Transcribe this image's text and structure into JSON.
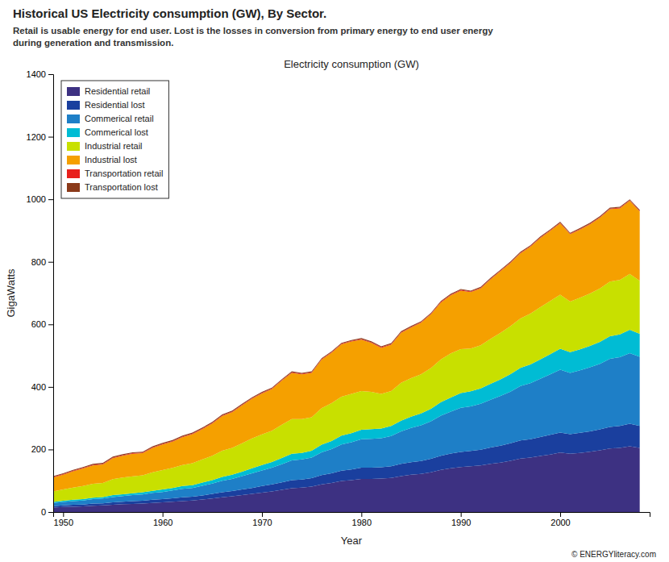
{
  "chart_data": {
    "type": "area",
    "stacked": true,
    "title": "Historical US Electricity consumption (GW), By Sector.",
    "subtitle": "Retail is usable energy for end user. Lost is the losses in conversion from primary energy to end user energy\nduring generation and transmission.",
    "annotations": [
      "Electricity consumption (GW)",
      "© ENERGYliteracy.com"
    ],
    "x_label": "Year",
    "y_label": "GigaWatts",
    "xlim": [
      1949,
      2009
    ],
    "ylim": [
      0,
      1400
    ],
    "xticks": [
      1950,
      1960,
      1970,
      1980,
      1990,
      2000
    ],
    "yticks": [
      0,
      200,
      400,
      600,
      800,
      1000,
      1200,
      1400
    ],
    "grid": false,
    "legend": "upper left",
    "x": [
      1949,
      1950,
      1951,
      1952,
      1953,
      1954,
      1955,
      1956,
      1957,
      1958,
      1959,
      1960,
      1961,
      1962,
      1963,
      1964,
      1965,
      1966,
      1967,
      1968,
      1969,
      1970,
      1971,
      1972,
      1973,
      1974,
      1975,
      1976,
      1977,
      1978,
      1979,
      1980,
      1981,
      1982,
      1983,
      1984,
      1985,
      1986,
      1987,
      1988,
      1989,
      1990,
      1991,
      1992,
      1993,
      1994,
      1995,
      1996,
      1997,
      1998,
      1999,
      2000,
      2001,
      2002,
      2003,
      2004,
      2005,
      2006,
      2007,
      2008
    ],
    "series": [
      {
        "name": "Residential retail",
        "color": "#3d3182",
        "values": [
          14,
          16,
          17,
          18,
          20,
          21,
          23,
          25,
          26,
          27,
          29,
          31,
          33,
          35,
          37,
          40,
          43,
          47,
          50,
          54,
          58,
          62,
          66,
          71,
          76,
          78,
          81,
          88,
          93,
          99,
          102,
          106,
          106,
          107,
          109,
          115,
          119,
          122,
          127,
          135,
          140,
          144,
          146,
          149,
          154,
          158,
          164,
          171,
          174,
          179,
          184,
          190,
          186,
          189,
          193,
          197,
          203,
          205,
          210,
          205
        ]
      },
      {
        "name": "Residential lost",
        "color": "#1a3f9e",
        "values": [
          5,
          5,
          6,
          6,
          7,
          7,
          8,
          8,
          9,
          9,
          10,
          10,
          11,
          12,
          12,
          13,
          15,
          16,
          17,
          18,
          19,
          21,
          22,
          24,
          26,
          26,
          27,
          30,
          31,
          33,
          34,
          36,
          36,
          36,
          37,
          39,
          40,
          41,
          43,
          45,
          47,
          48,
          49,
          50,
          52,
          54,
          56,
          58,
          59,
          61,
          63,
          64,
          63,
          64,
          65,
          67,
          69,
          70,
          72,
          70
        ]
      },
      {
        "name": "Commerical retail",
        "color": "#1e7fc7",
        "values": [
          10,
          11,
          12,
          13,
          14,
          15,
          17,
          18,
          19,
          20,
          22,
          23,
          25,
          27,
          28,
          31,
          33,
          37,
          39,
          43,
          47,
          50,
          54,
          58,
          63,
          64,
          66,
          73,
          77,
          84,
          87,
          91,
          92,
          93,
          97,
          104,
          110,
          114,
          120,
          128,
          134,
          141,
          143,
          147,
          153,
          159,
          165,
          174,
          179,
          186,
          193,
          201,
          196,
          200,
          205,
          210,
          218,
          220,
          226,
          221
        ]
      },
      {
        "name": "Commerical lost",
        "color": "#00bcd4",
        "values": [
          3,
          4,
          4,
          4,
          5,
          5,
          6,
          6,
          6,
          7,
          7,
          8,
          8,
          9,
          9,
          10,
          11,
          12,
          13,
          14,
          16,
          17,
          18,
          20,
          21,
          21,
          22,
          24,
          26,
          28,
          29,
          30,
          31,
          31,
          32,
          34,
          36,
          38,
          40,
          43,
          45,
          47,
          48,
          49,
          51,
          53,
          56,
          58,
          60,
          62,
          65,
          67,
          66,
          67,
          68,
          70,
          72,
          73,
          75,
          74
        ]
      },
      {
        "name": "Industrial retail",
        "color": "#c8e000",
        "values": [
          34,
          36,
          39,
          42,
          44,
          45,
          51,
          53,
          54,
          54,
          59,
          62,
          64,
          67,
          70,
          74,
          78,
          84,
          86,
          91,
          95,
          98,
          100,
          106,
          111,
          108,
          107,
          117,
          121,
          125,
          126,
          124,
          119,
          111,
          112,
          121,
          123,
          125,
          130,
          137,
          141,
          141,
          137,
          138,
          144,
          149,
          153,
          158,
          162,
          167,
          170,
          173,
          162,
          165,
          168,
          171,
          175,
          174,
          178,
          169
        ]
      },
      {
        "name": "Industrial lost",
        "color": "#f5a000",
        "values": [
          44,
          47,
          52,
          56,
          59,
          59,
          67,
          70,
          72,
          71,
          78,
          82,
          84,
          89,
          93,
          97,
          103,
          111,
          114,
          121,
          127,
          131,
          133,
          141,
          148,
          143,
          142,
          155,
          161,
          167,
          167,
          164,
          157,
          147,
          148,
          160,
          162,
          165,
          172,
          182,
          186,
          187,
          180,
          182,
          190,
          197,
          202,
          208,
          214,
          221,
          224,
          228,
          215,
          218,
          221,
          226,
          231,
          229,
          234,
          222
        ]
      },
      {
        "name": "Transportation retail",
        "color": "#e8211d",
        "values": [
          2,
          2,
          2,
          2,
          2,
          2,
          2,
          2,
          2,
          2,
          2,
          2,
          2,
          2,
          2,
          2,
          2,
          2,
          2,
          2,
          2,
          2,
          2,
          2,
          2,
          2,
          2,
          2,
          2,
          2,
          2,
          2,
          2,
          2,
          2,
          2,
          2,
          2,
          2,
          2,
          2,
          2,
          2,
          2,
          2,
          2,
          2,
          2,
          2,
          2,
          2,
          2,
          2,
          2,
          2,
          2,
          2,
          2,
          2,
          2
        ]
      },
      {
        "name": "Transportation lost",
        "color": "#8b3a1a",
        "values": [
          3,
          3,
          3,
          3,
          3,
          3,
          3,
          3,
          3,
          3,
          3,
          3,
          3,
          3,
          3,
          3,
          3,
          3,
          3,
          3,
          3,
          3,
          3,
          3,
          3,
          3,
          3,
          3,
          3,
          3,
          3,
          3,
          3,
          3,
          3,
          3,
          3,
          3,
          3,
          3,
          3,
          3,
          3,
          3,
          3,
          3,
          3,
          3,
          3,
          3,
          3,
          3,
          3,
          3,
          3,
          3,
          3,
          3,
          3,
          3
        ]
      }
    ]
  }
}
